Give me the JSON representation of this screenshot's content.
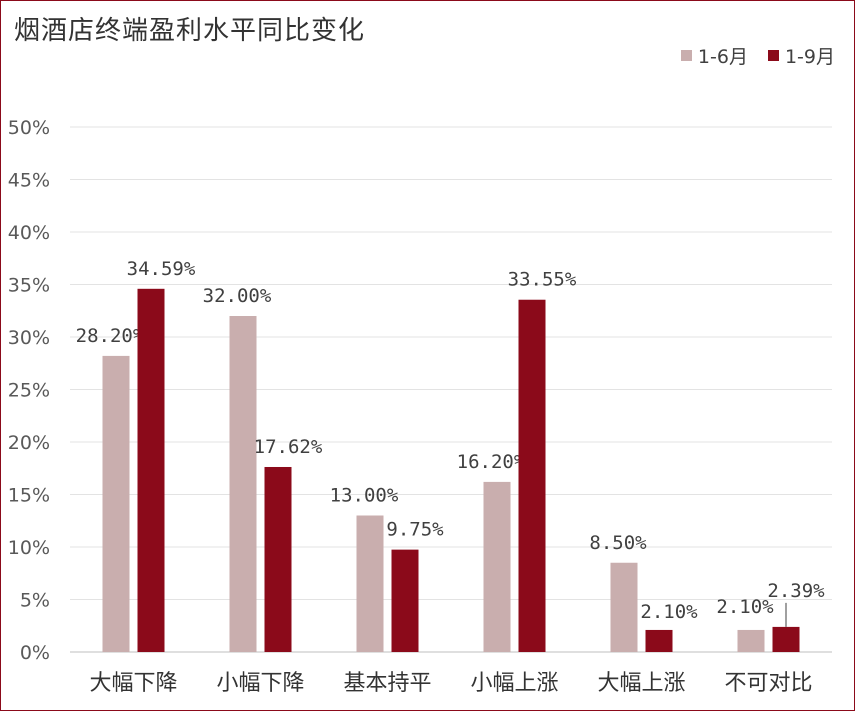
{
  "chart_data": {
    "type": "bar",
    "title": "烟酒店终端盈利水平同比变化",
    "categories": [
      "大幅下降",
      "小幅下降",
      "基本持平",
      "小幅上涨",
      "大幅上涨",
      "不可对比"
    ],
    "series": [
      {
        "name": "1-6月",
        "color": "#c9aeae",
        "values": [
          28.2,
          32.0,
          13.0,
          16.2,
          8.5,
          2.1
        ],
        "labels": [
          "28.20%",
          "32.00%",
          "13.00%",
          "16.20%",
          "8.50%",
          "2.10%"
        ]
      },
      {
        "name": "1-9月",
        "color": "#8b0a1a",
        "values": [
          34.59,
          17.62,
          9.75,
          33.55,
          2.1,
          2.39
        ],
        "labels": [
          "34.59%",
          "17.62%",
          "9.75%",
          "33.55%",
          "2.10%",
          "2.39%"
        ]
      }
    ],
    "yticks": [
      "0%",
      "5%",
      "10%",
      "15%",
      "20%",
      "25%",
      "30%",
      "35%",
      "40%",
      "45%",
      "50%"
    ],
    "ylim": [
      0,
      50
    ],
    "grid": true,
    "legend_position": "top-right"
  }
}
